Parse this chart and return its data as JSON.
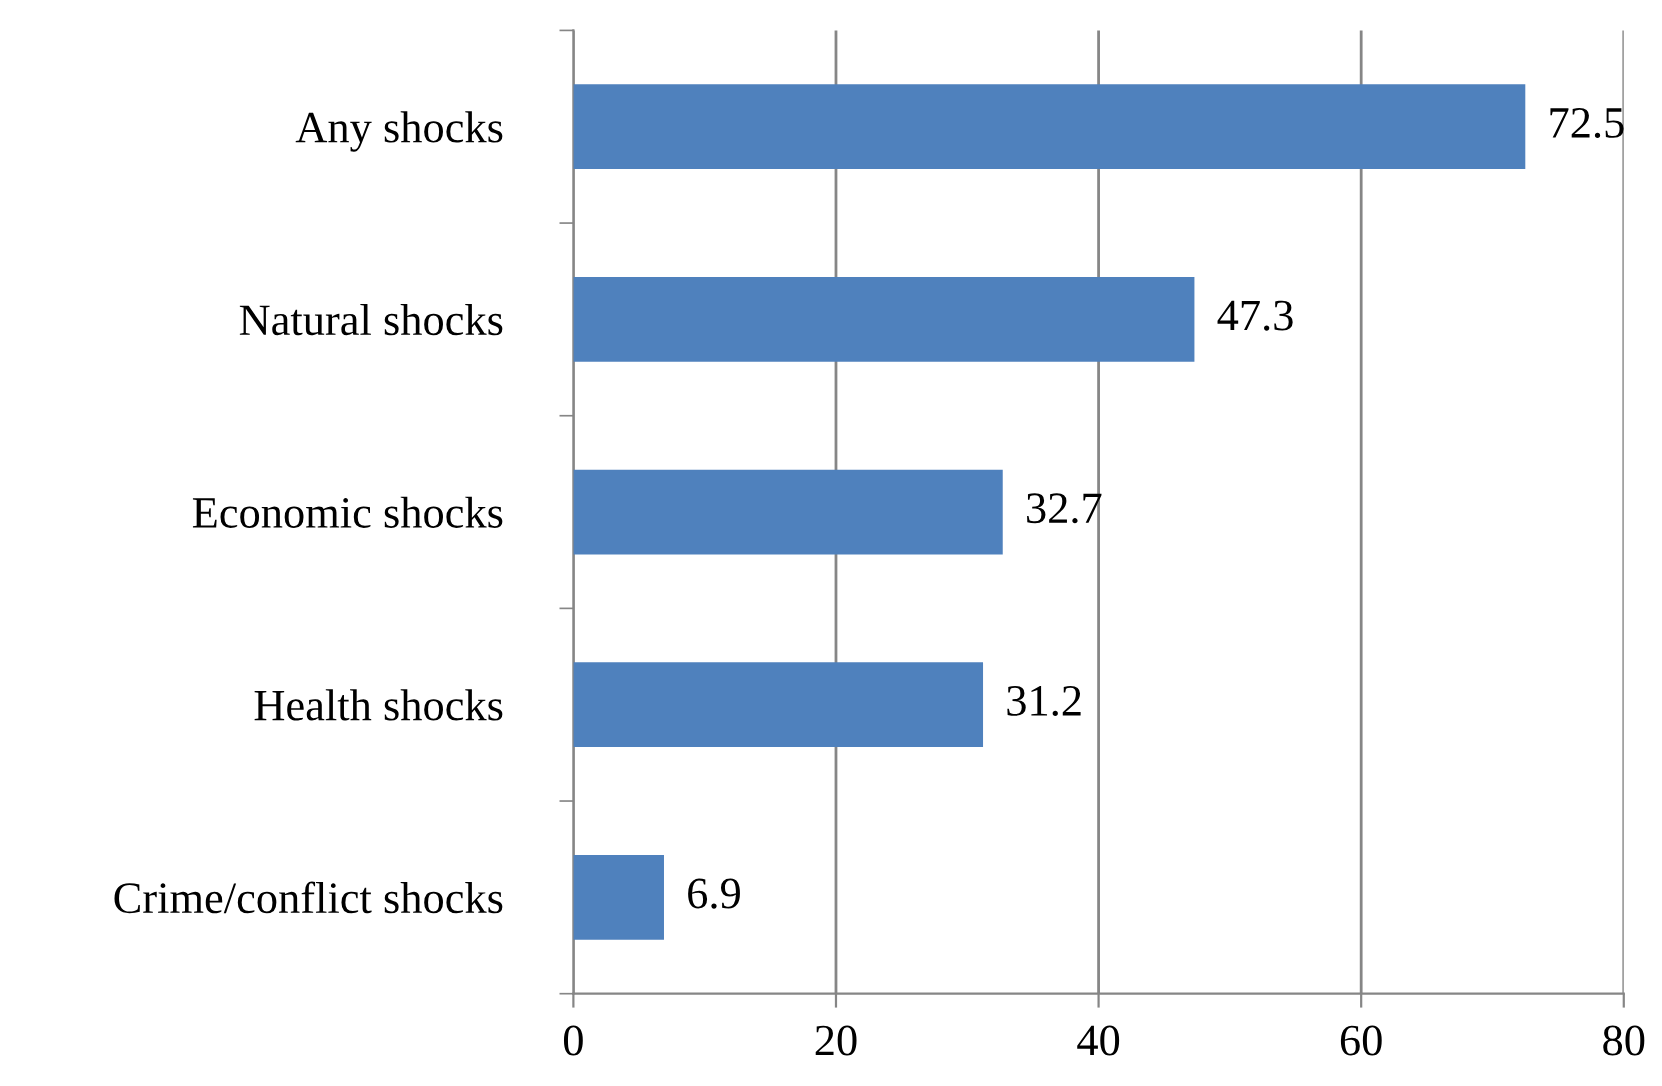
{
  "chart_data": {
    "type": "bar",
    "orientation": "horizontal",
    "categories": [
      "Any shocks",
      "Natural shocks",
      "Economic shocks",
      "Health shocks",
      "Crime/conflict shocks"
    ],
    "values": [
      72.5,
      47.3,
      32.7,
      31.2,
      6.9
    ],
    "color": "#4f81bd",
    "xlim": [
      0,
      80
    ],
    "xticks": [
      0,
      20,
      40,
      60,
      80
    ],
    "grid": "x",
    "data_labels": true,
    "legend": false
  }
}
